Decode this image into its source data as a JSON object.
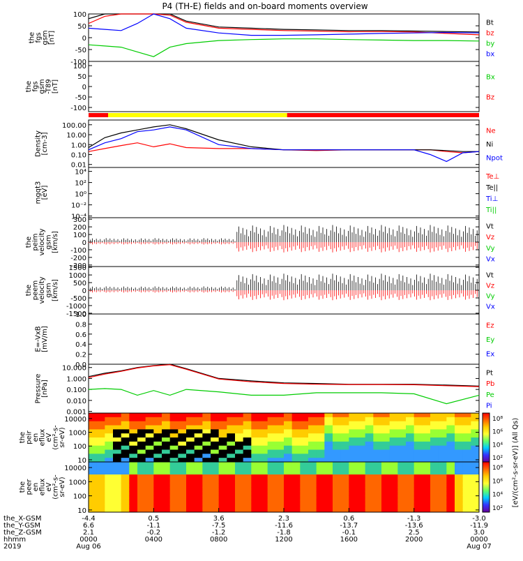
{
  "title": "P4 (TH-E) fields and on-board moments overview",
  "colors": {
    "black": "#000000",
    "red": "#ff0000",
    "green": "#00cc00",
    "blue": "#0000ff",
    "yellow": "#ffff00"
  },
  "panels": [
    {
      "id": "fgs_gsm",
      "ylabel": [
        "the",
        "fgs",
        "gsm",
        "[nT]"
      ],
      "ticks": [
        "100",
        "50",
        "0",
        "-50",
        "-100"
      ],
      "tick_vals": [
        100,
        50,
        0,
        -50,
        -100
      ],
      "ylim": [
        -100,
        100
      ],
      "legend": [
        {
          "text": "Bt",
          "color": "black"
        },
        {
          "text": "bz",
          "color": "red"
        },
        {
          "text": "by",
          "color": "green"
        },
        {
          "text": "bx",
          "color": "blue"
        }
      ]
    },
    {
      "id": "fgs_gsm_dt",
      "ylabel": [
        "the",
        "fgs",
        "gsm",
        "-T89",
        "[nT]"
      ],
      "ticks": [
        "100",
        "50",
        "0",
        "-50",
        "-100"
      ],
      "tick_vals": [
        100,
        50,
        0,
        -50,
        -100
      ],
      "ylim": [
        -120,
        120
      ],
      "legend": [
        {
          "text": "Bx",
          "color": "green"
        },
        {
          "text": "Bz",
          "color": "red"
        }
      ]
    },
    {
      "id": "density",
      "ylabel": [
        "Density",
        "[cm-3]"
      ],
      "ticks": [
        "100.00",
        "10.00",
        "1.00",
        "0.10",
        "0.01"
      ],
      "tick_vals": [
        100,
        10,
        1,
        0.1,
        0.01
      ],
      "log": true,
      "ylim": [
        0.005,
        300
      ],
      "legend": [
        {
          "text": "Ne",
          "color": "red"
        },
        {
          "text": "Ni",
          "color": "black"
        },
        {
          "text": "Npot",
          "color": "blue"
        }
      ]
    },
    {
      "id": "temperature",
      "ylabel": [
        "mgqt3",
        "[eV]"
      ],
      "ticks": [
        "10⁴",
        "10²",
        "10⁰",
        "10⁻²",
        "10⁻⁴"
      ],
      "tick_vals": [
        10000,
        100,
        1,
        0.01,
        0.0001
      ],
      "log": true,
      "ylim": [
        5e-05,
        50000
      ],
      "legend": [
        {
          "text": "Te⊥",
          "color": "red"
        },
        {
          "text": "Te||",
          "color": "black"
        },
        {
          "text": "Ti⊥",
          "color": "blue"
        },
        {
          "text": "Ti||",
          "color": "green"
        }
      ]
    },
    {
      "id": "peim_velocity",
      "ylabel": [
        "the",
        "peim",
        "velocity",
        "gsm",
        "[km/s]"
      ],
      "ticks": [
        "300",
        "200",
        "100",
        "0",
        "-100",
        "-200",
        "-300"
      ],
      "tick_vals": [
        300,
        200,
        100,
        0,
        -100,
        -200,
        -300
      ],
      "ylim": [
        -320,
        320
      ],
      "legend": [
        {
          "text": "Vt",
          "color": "black"
        },
        {
          "text": "Vz",
          "color": "red"
        },
        {
          "text": "Vy",
          "color": "green"
        },
        {
          "text": "Vx",
          "color": "blue"
        }
      ]
    },
    {
      "id": "peem_velocity",
      "ylabel": [
        "the",
        "peem",
        "velocity",
        "gsm",
        "[km/s]"
      ],
      "ticks": [
        "1500",
        "1000",
        "500",
        "0",
        "-500",
        "-1000",
        "-1500"
      ],
      "tick_vals": [
        1500,
        1000,
        500,
        0,
        -500,
        -1000,
        -1500
      ],
      "ylim": [
        -1550,
        1550
      ],
      "legend": [
        {
          "text": "Vt",
          "color": "black"
        },
        {
          "text": "Vz",
          "color": "red"
        },
        {
          "text": "Vy",
          "color": "green"
        },
        {
          "text": "Vx",
          "color": "blue"
        }
      ]
    },
    {
      "id": "efield",
      "ylabel": [
        "E=-VxB",
        "[mV/m]"
      ],
      "ticks": [
        "1.0",
        "0.8",
        "0.6",
        "0.4",
        "0.2",
        "0.0"
      ],
      "tick_vals": [
        1,
        0.8,
        0.6,
        0.4,
        0.2,
        0
      ],
      "ylim": [
        0,
        1
      ],
      "legend": [
        {
          "text": "Ez",
          "color": "red"
        },
        {
          "text": "Ey",
          "color": "green"
        },
        {
          "text": "Ex",
          "color": "blue"
        }
      ]
    },
    {
      "id": "pressure",
      "ylabel": [
        "Pressure",
        "[nPa]"
      ],
      "ticks": [
        "10.000",
        "1.000",
        "0.100",
        "0.010",
        "0.001"
      ],
      "tick_vals": [
        10,
        1,
        0.1,
        0.01,
        0.001
      ],
      "log": true,
      "ylim": [
        0.0007,
        20
      ],
      "legend": [
        {
          "text": "Pt",
          "color": "black"
        },
        {
          "text": "Pb",
          "color": "red"
        },
        {
          "text": "Pe",
          "color": "green"
        },
        {
          "text": "Pi",
          "color": "blue"
        }
      ]
    },
    {
      "id": "peir_eflux",
      "ylabel": [
        "the",
        "peir",
        "en",
        "eflux",
        "eV",
        "(cm²-s-",
        "sr-eV)"
      ],
      "ticks": [
        "10000",
        "1000",
        "100",
        "10"
      ],
      "tick_vals": [
        10000,
        1000,
        100,
        10
      ],
      "log": true,
      "ylim": [
        7,
        25000
      ],
      "spectrogram": true
    },
    {
      "id": "peer_eflux",
      "ylabel": [
        "the",
        "peer",
        "en",
        "eflux",
        "eV",
        "(cm²-s-",
        "sr-eV)"
      ],
      "ticks": [
        "10000",
        "1000",
        "100",
        "10"
      ],
      "tick_vals": [
        10000,
        1000,
        100,
        10
      ],
      "log": true,
      "ylim": [
        7,
        25000
      ],
      "spectrogram": true
    }
  ],
  "colorbar": {
    "label": "[eV/(cm²-s-sr-eV)] (All Qs)",
    "ticks_top": [
      "10⁸",
      "10⁶",
      "10⁴",
      "10²"
    ],
    "ticks_bottom": [
      "10⁸",
      "10⁶",
      "10⁴",
      "10²"
    ]
  },
  "xaxis": {
    "rows": [
      {
        "label": "the_X-GSM",
        "values": [
          "-4.4",
          "0.5",
          "3.6",
          "2.3",
          "0.6",
          "-1.3",
          "-3.0"
        ]
      },
      {
        "label": "the_Y-GSM",
        "values": [
          "6.6",
          "-1.1",
          "-7.5",
          "-11.6",
          "-13.7",
          "-13.6",
          "-11.9"
        ]
      },
      {
        "label": "the_Z-GSM",
        "values": [
          "2.1",
          "-0.2",
          "-1.2",
          "-1.8",
          "-0.1",
          "2.5",
          "3.0"
        ]
      },
      {
        "label": "hhmm",
        "values": [
          "0000",
          "0400",
          "0800",
          "1200",
          "1600",
          "2000",
          "0000"
        ]
      }
    ],
    "year": "2019",
    "date_start": "Aug 06",
    "date_end": "Aug 07",
    "tick_hours": [
      0,
      4,
      8,
      12,
      16,
      20,
      24
    ]
  },
  "chart_data": {
    "type": "line",
    "title": "P4 (TH-E) fields and on-board moments overview",
    "x_unit": "hours since 2019 Aug 06 0000 UT",
    "xlim": [
      0,
      24
    ],
    "series": [
      {
        "panel": "fgs_gsm",
        "name": "Bt",
        "x": [
          0,
          1,
          2,
          3,
          4,
          5,
          6,
          8,
          10,
          12,
          14,
          16,
          18,
          20,
          22,
          24
        ],
        "y": [
          80,
          100,
          100,
          100,
          100,
          100,
          70,
          45,
          40,
          35,
          33,
          30,
          30,
          28,
          26,
          24
        ]
      },
      {
        "panel": "fgs_gsm",
        "name": "bz",
        "x": [
          0,
          1,
          2,
          3,
          4,
          5,
          6,
          8,
          10,
          12,
          14,
          16,
          18,
          20,
          22,
          24
        ],
        "y": [
          60,
          90,
          100,
          100,
          100,
          95,
          65,
          40,
          35,
          30,
          28,
          25,
          26,
          24,
          18,
          12
        ]
      },
      {
        "panel": "fgs_gsm",
        "name": "by",
        "x": [
          0,
          1,
          2,
          3,
          4,
          5,
          6,
          8,
          10,
          12,
          14,
          16,
          18,
          20,
          22,
          24
        ],
        "y": [
          -30,
          -35,
          -40,
          -60,
          -80,
          -40,
          -25,
          -12,
          -8,
          -5,
          -5,
          -8,
          -10,
          -12,
          -12,
          -14
        ]
      },
      {
        "panel": "fgs_gsm",
        "name": "bx",
        "x": [
          0,
          1,
          2,
          3,
          4,
          5,
          6,
          8,
          10,
          12,
          14,
          16,
          18,
          20,
          22,
          24
        ],
        "y": [
          40,
          35,
          30,
          60,
          100,
          80,
          40,
          20,
          10,
          10,
          12,
          15,
          18,
          20,
          22,
          20
        ]
      },
      {
        "panel": "density",
        "name": "Ne",
        "x": [
          0,
          1,
          2,
          3,
          4,
          5,
          6,
          8,
          10,
          12,
          14,
          16,
          18,
          20,
          21,
          22,
          23,
          24
        ],
        "y": [
          0.2,
          0.4,
          0.8,
          1.5,
          0.6,
          1.2,
          0.5,
          0.4,
          0.4,
          0.3,
          0.25,
          0.3,
          0.3,
          0.3,
          0.3,
          0.2,
          0.15,
          0.2
        ]
      },
      {
        "panel": "density",
        "name": "Ni",
        "x": [
          0,
          1,
          2,
          3,
          4,
          5,
          6,
          8,
          10,
          12,
          14,
          16,
          18,
          20,
          21,
          22,
          23,
          24
        ],
        "y": [
          0.5,
          5,
          15,
          30,
          60,
          100,
          40,
          3,
          0.6,
          0.3,
          0.3,
          0.3,
          0.3,
          0.3,
          0.3,
          0.25,
          0.2,
          0.2
        ]
      },
      {
        "panel": "density",
        "name": "Npot",
        "x": [
          0,
          1,
          2,
          3,
          4,
          5,
          6,
          8,
          10,
          12,
          14,
          16,
          18,
          20,
          21,
          22,
          23,
          24
        ],
        "y": [
          0.3,
          1.5,
          4,
          20,
          30,
          60,
          30,
          1,
          0.4,
          0.3,
          0.3,
          0.3,
          0.3,
          0.3,
          0.1,
          0.02,
          0.15,
          0.2
        ]
      },
      {
        "panel": "pressure",
        "name": "Pt",
        "x": [
          0,
          1,
          2,
          3,
          4,
          5,
          6,
          8,
          10,
          12,
          14,
          16,
          18,
          20,
          22,
          24
        ],
        "y": [
          1.5,
          3,
          5,
          10,
          15,
          20,
          8,
          1,
          0.6,
          0.4,
          0.35,
          0.3,
          0.3,
          0.3,
          0.25,
          0.2
        ]
      },
      {
        "panel": "pressure",
        "name": "Pb",
        "x": [
          0,
          1,
          2,
          3,
          4,
          5,
          6,
          8,
          10,
          12,
          14,
          16,
          18,
          20,
          22,
          24
        ],
        "y": [
          1.2,
          2.5,
          4.5,
          9,
          14,
          18,
          7,
          0.9,
          0.5,
          0.35,
          0.3,
          0.28,
          0.28,
          0.27,
          0.22,
          0.18
        ]
      },
      {
        "panel": "pressure",
        "name": "Pe",
        "x": [
          0,
          1,
          2,
          3,
          4,
          5,
          6,
          8,
          10,
          12,
          14,
          16,
          18,
          20,
          22,
          24
        ],
        "y": [
          0.1,
          0.12,
          0.1,
          0.03,
          0.08,
          0.03,
          0.1,
          0.06,
          0.03,
          0.03,
          0.05,
          0.05,
          0.05,
          0.04,
          0.005,
          0.03
        ]
      }
    ]
  }
}
